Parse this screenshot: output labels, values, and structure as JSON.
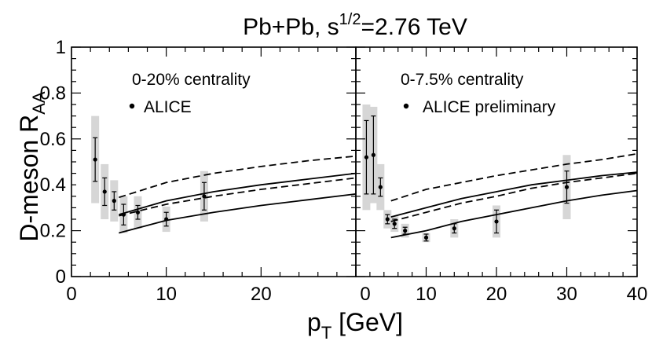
{
  "chart_data": [
    {
      "type": "scatter",
      "panel": "left",
      "title": "Pb+Pb, s^1/2=2.76 TeV",
      "xlabel": "p_T [GeV]",
      "ylabel": "D-meson R_AA",
      "xlim": [
        0,
        30
      ],
      "ylim": [
        0,
        1
      ],
      "xticks": [
        0,
        10,
        20
      ],
      "yticks": [
        0,
        0.2,
        0.4,
        0.6,
        0.8,
        1
      ],
      "ytick_labels": [
        "0",
        "0.2",
        "0.4",
        "0.6",
        "0.8",
        "1"
      ],
      "centrality_label": "0-20% centrality",
      "legend": "ALICE",
      "series": [
        {
          "name": "ALICE",
          "x": [
            2.5,
            3.5,
            4.5,
            5.5,
            7,
            10,
            14
          ],
          "y": [
            0.51,
            0.37,
            0.33,
            0.27,
            0.28,
            0.25,
            0.35
          ],
          "stat_err": [
            0.095,
            0.06,
            0.04,
            0.045,
            0.03,
            0.03,
            0.06
          ],
          "sys_err": [
            0.19,
            0.12,
            0.09,
            0.08,
            0.07,
            0.055,
            0.11
          ]
        }
      ],
      "curves": [
        {
          "name": "upper-dashed",
          "style": "dashed",
          "x": [
            5,
            10,
            15,
            20,
            25,
            30
          ],
          "y": [
            0.345,
            0.41,
            0.45,
            0.48,
            0.505,
            0.525
          ]
        },
        {
          "name": "upper-solid",
          "style": "solid",
          "x": [
            5,
            10,
            15,
            20,
            25,
            30
          ],
          "y": [
            0.27,
            0.33,
            0.37,
            0.4,
            0.425,
            0.45
          ]
        },
        {
          "name": "lower-dashed",
          "style": "dashed",
          "x": [
            5,
            10,
            15,
            20,
            25,
            30
          ],
          "y": [
            0.265,
            0.315,
            0.35,
            0.38,
            0.405,
            0.43
          ]
        },
        {
          "name": "lower-solid",
          "style": "solid",
          "x": [
            5,
            10,
            15,
            20,
            25,
            30
          ],
          "y": [
            0.19,
            0.245,
            0.28,
            0.31,
            0.335,
            0.36
          ]
        }
      ]
    },
    {
      "type": "scatter",
      "panel": "right",
      "xlim": [
        0,
        40
      ],
      "ylim": [
        0,
        1
      ],
      "xticks": [
        0,
        10,
        20,
        30,
        40
      ],
      "centrality_label": "0-7.5% centrality",
      "legend": "ALICE preliminary",
      "series": [
        {
          "name": "ALICE preliminary",
          "x": [
            1.5,
            2.5,
            3.5,
            4.5,
            5.5,
            7,
            10,
            14,
            20,
            30
          ],
          "y": [
            0.52,
            0.53,
            0.39,
            0.25,
            0.23,
            0.2,
            0.17,
            0.21,
            0.24,
            0.39
          ],
          "stat_err": [
            0.16,
            0.17,
            0.04,
            0.02,
            0.02,
            0.015,
            0.015,
            0.02,
            0.05,
            0.07
          ],
          "sys_err": [
            0.23,
            0.21,
            0.1,
            0.04,
            0.035,
            0.03,
            0.02,
            0.04,
            0.07,
            0.14
          ]
        }
      ],
      "curves": [
        {
          "name": "upper-dashed",
          "style": "dashed",
          "x": [
            5,
            10,
            15,
            20,
            25,
            30,
            35,
            40
          ],
          "y": [
            0.33,
            0.38,
            0.41,
            0.44,
            0.465,
            0.49,
            0.51,
            0.535
          ]
        },
        {
          "name": "upper-solid",
          "style": "solid",
          "x": [
            5,
            10,
            15,
            20,
            25,
            30,
            35,
            40
          ],
          "y": [
            0.26,
            0.3,
            0.34,
            0.37,
            0.4,
            0.42,
            0.44,
            0.455
          ]
        },
        {
          "name": "lower-dashed",
          "style": "dashed",
          "x": [
            5,
            10,
            15,
            20,
            25,
            30,
            35,
            40
          ],
          "y": [
            0.24,
            0.28,
            0.32,
            0.35,
            0.385,
            0.41,
            0.43,
            0.45
          ]
        },
        {
          "name": "lower-solid",
          "style": "solid",
          "x": [
            5,
            10,
            15,
            20,
            25,
            30,
            35,
            40
          ],
          "y": [
            0.17,
            0.2,
            0.24,
            0.27,
            0.3,
            0.33,
            0.355,
            0.375
          ]
        }
      ]
    }
  ],
  "title_parts": {
    "base": "Pb+Pb, s",
    "sup": "1/2",
    "rest": "=2.76  TeV"
  },
  "ylabel_parts": {
    "base": "D-meson R",
    "sub": "AA"
  },
  "xlabel_parts": {
    "base": "p",
    "sub": "T",
    "rest": "  [GeV]"
  },
  "xtick_labels_left": [
    "0",
    "10",
    "20"
  ],
  "xtick_labels_right": [
    "0",
    "10",
    "20",
    "30",
    "40"
  ],
  "ytick_labels": [
    "0",
    "0.2",
    "0.4",
    "0.6",
    "0.8",
    "1"
  ]
}
